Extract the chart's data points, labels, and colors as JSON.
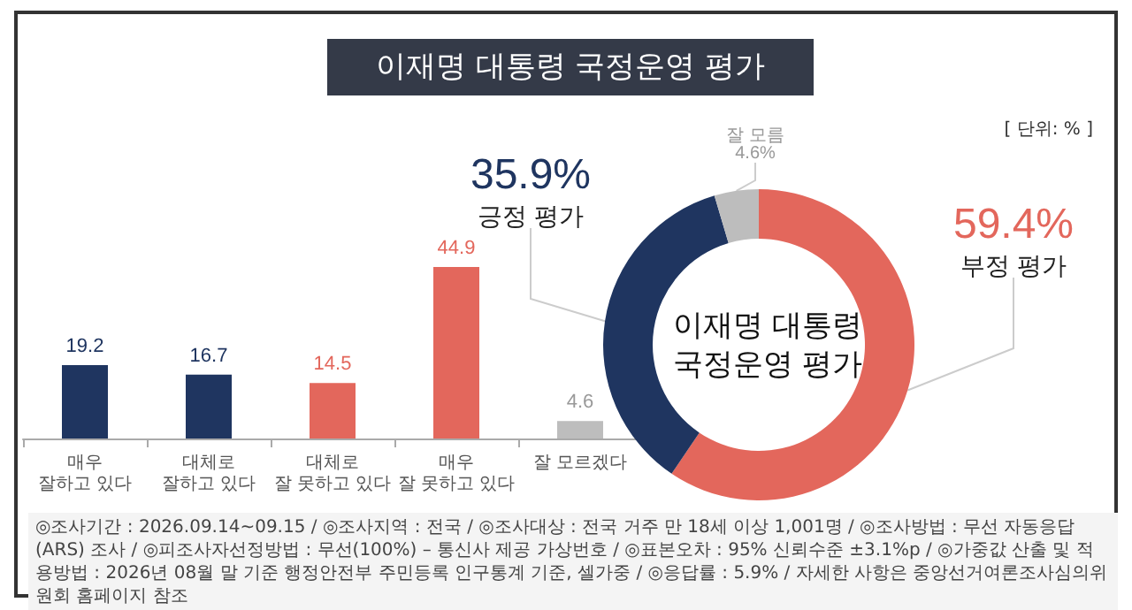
{
  "chart_data": [
    {
      "type": "bar",
      "title": "이재명 대통령 국정운영 평가",
      "categories": [
        "매우\n잘하고 있다",
        "대체로\n잘하고 있다",
        "대체로\n잘 못하고 있다",
        "매우\n잘 못하고 있다",
        "잘 모르겠다"
      ],
      "values": [
        19.2,
        16.7,
        14.5,
        44.9,
        4.6
      ],
      "colors": [
        "#1f3560",
        "#1f3560",
        "#e3675c",
        "#e3675c",
        "#bdbdbd"
      ],
      "data_labels": true,
      "grid": false,
      "legend": false,
      "annotations": [
        "◎조사기간 : 2026.09.14~09.15 / ◎조사지역 : 전국 / ◎조사대상 : 전국 거주 만 18세 이상 1,001명 / ◎조사방법 : 무선 자동응답(ARS) 조사 / ◎피조사자선정방법 : 무선(100%) – 통신사 제공 가상번호 / ◎표본오차 : 95% 신뢰수준 ±3.1%p / ◎가중값 산출 및 적용방법 : 2026년 08월 말 기준 행정안전부 주민등록 인구통계 기준, 셀가중 / ◎응답률 : 5.9% / 자세한 사항은 중앙선거여론조사심의위원회 홈페이지 참조"
      ]
    },
    {
      "type": "donut",
      "title": "이재명 대통령\n국정운영 평가",
      "categories": [
        "부정 평가",
        "긍정 평가",
        "잘 모름"
      ],
      "values": [
        59.4,
        35.9,
        4.6
      ],
      "colors": [
        "#e3675c",
        "#1f3560",
        "#bdbdbd"
      ],
      "value_labels": [
        "59.4%",
        "35.9%",
        "4.6%"
      ],
      "legend": false,
      "annotations": [
        "[ 단위: % ]"
      ]
    }
  ]
}
